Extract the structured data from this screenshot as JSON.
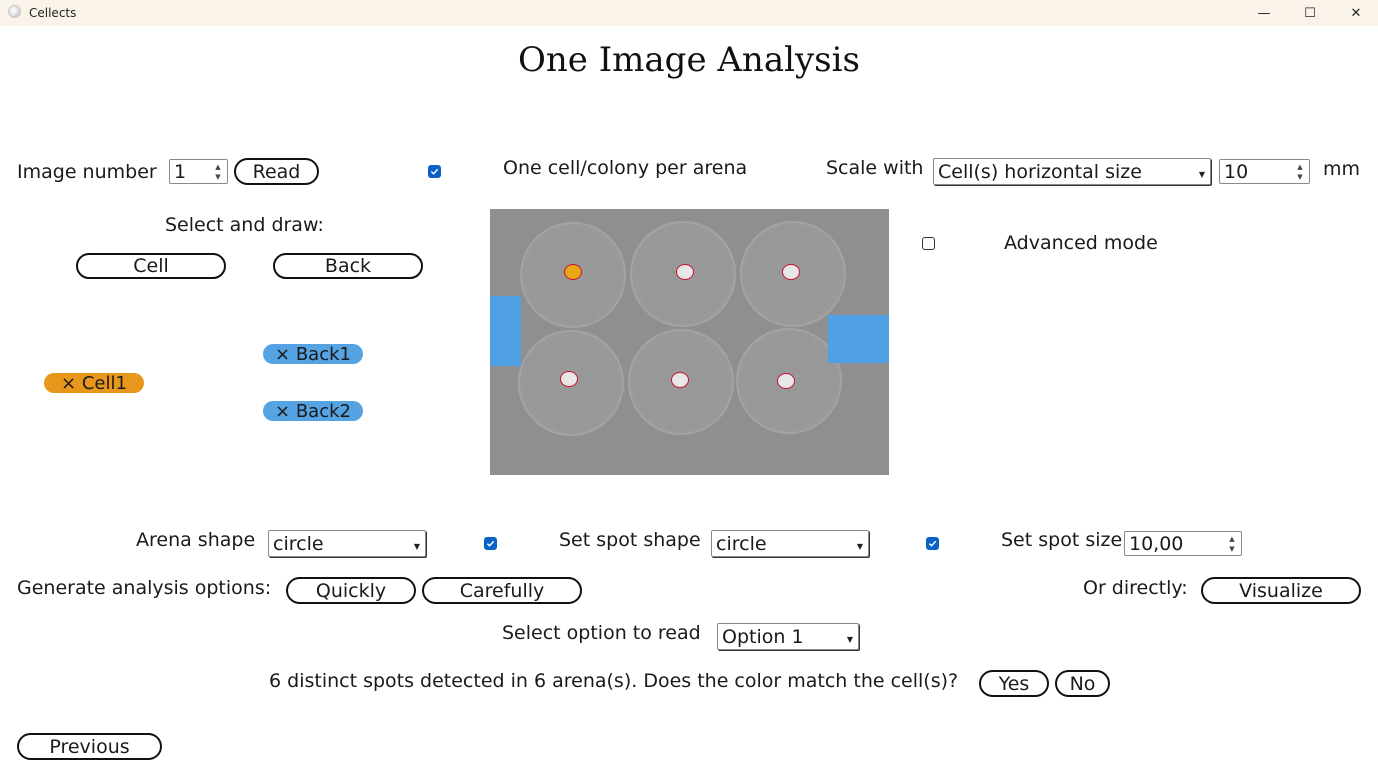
{
  "window": {
    "app_title": "Cellects",
    "minimize_glyph": "—",
    "maximize_glyph": "☐",
    "close_glyph": "✕"
  },
  "page_title": "One Image Analysis",
  "image_number": {
    "label": "Image number",
    "value": "1",
    "read_button": "Read"
  },
  "one_cell_per_arena": {
    "checked": true,
    "label": "One cell/colony per arena"
  },
  "scale": {
    "label": "Scale with",
    "selected": "Cell(s) horizontal size",
    "value": "10",
    "unit": "mm"
  },
  "select_draw": {
    "label": "Select and draw:",
    "cell_button": "Cell",
    "back_button": "Back"
  },
  "chips": {
    "cell1": "× Cell1",
    "back1": "× Back1",
    "back2": "× Back2"
  },
  "advanced_mode": {
    "checked": false,
    "label": "Advanced mode"
  },
  "arena_shape": {
    "label": "Arena shape",
    "selected": "circle",
    "checked": true
  },
  "spot_shape": {
    "label": "Set spot shape",
    "selected": "circle",
    "checked": true
  },
  "spot_size": {
    "label": "Set spot size",
    "value": "10,00"
  },
  "generate": {
    "label": "Generate analysis options:",
    "quickly_button": "Quickly",
    "carefully_button": "Carefully",
    "directly_label": "Or directly:",
    "visualize_button": "Visualize"
  },
  "option_read": {
    "label": "Select option to read",
    "selected": "Option 1"
  },
  "detection": {
    "message": "6 distinct spots detected in 6 arena(s). Does the color match the cell(s)?",
    "yes_button": "Yes",
    "no_button": "No"
  },
  "previous_button": "Previous",
  "colors": {
    "accent_check": "#0a62c7",
    "cell_chip": "#e8961c",
    "back_chip": "#56a3e3",
    "titlebar": "#faf3ea"
  }
}
